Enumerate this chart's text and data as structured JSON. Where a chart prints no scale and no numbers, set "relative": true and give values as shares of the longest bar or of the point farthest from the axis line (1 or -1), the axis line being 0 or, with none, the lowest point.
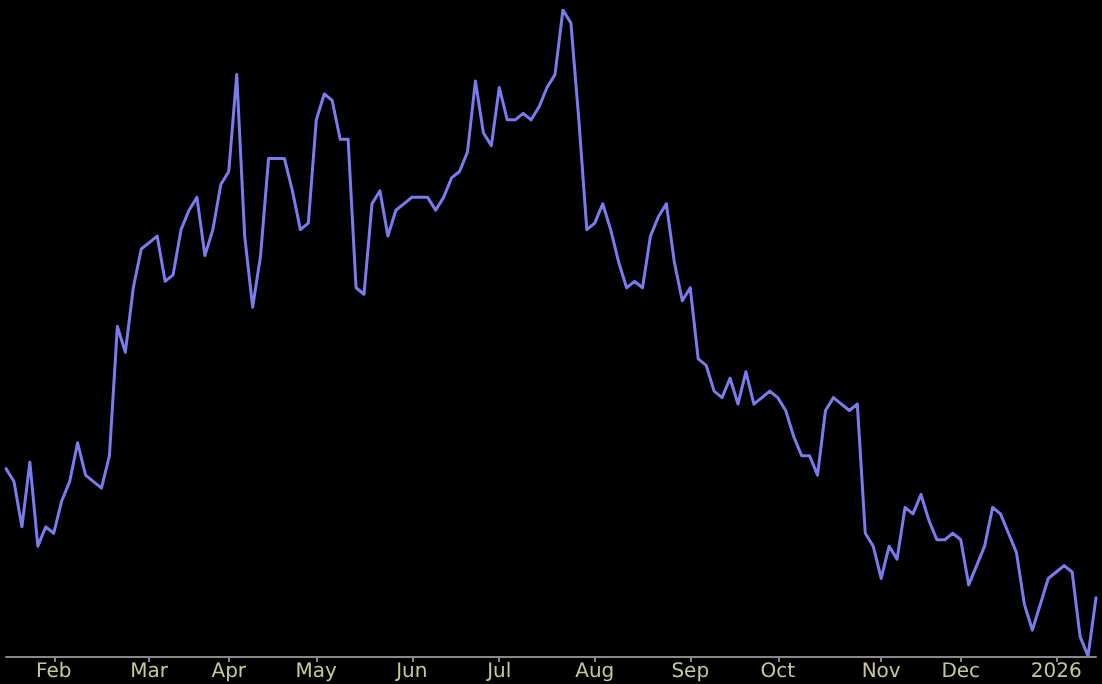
{
  "chart_data": {
    "type": "line",
    "relative": true,
    "color": "#7b7bf0",
    "grid": false,
    "marker": "none",
    "line_style": "solid",
    "categories": [
      null,
      null,
      null,
      null,
      null,
      null,
      "Feb",
      null,
      null,
      null,
      null,
      null,
      null,
      null,
      null,
      null,
      null,
      null,
      "Mar",
      null,
      null,
      null,
      null,
      null,
      null,
      null,
      null,
      null,
      "Apr",
      null,
      null,
      null,
      null,
      null,
      null,
      null,
      null,
      null,
      null,
      "May",
      null,
      null,
      null,
      null,
      null,
      null,
      null,
      null,
      null,
      null,
      null,
      "Jun",
      null,
      null,
      null,
      null,
      null,
      null,
      null,
      null,
      null,
      null,
      "Jul",
      null,
      null,
      null,
      null,
      null,
      null,
      null,
      null,
      null,
      null,
      null,
      "Aug",
      null,
      null,
      null,
      null,
      null,
      null,
      null,
      null,
      null,
      null,
      null,
      "Sep",
      null,
      null,
      null,
      null,
      null,
      null,
      null,
      null,
      null,
      null,
      "Oct",
      null,
      null,
      null,
      null,
      null,
      null,
      null,
      null,
      null,
      null,
      null,
      null,
      "Nov",
      null,
      null,
      null,
      null,
      null,
      null,
      null,
      null,
      null,
      "Dec",
      null,
      null,
      null,
      null,
      null,
      null,
      null,
      null,
      null,
      null,
      null,
      "2026",
      null,
      null,
      null,
      null,
      null
    ],
    "values": [
      0.29,
      0.27,
      0.2,
      0.3,
      0.17,
      0.2,
      0.19,
      0.24,
      0.27,
      0.33,
      0.28,
      0.27,
      0.26,
      0.31,
      0.51,
      0.47,
      0.57,
      0.63,
      0.64,
      0.65,
      0.58,
      0.59,
      0.66,
      0.69,
      0.71,
      0.62,
      0.66,
      0.73,
      0.75,
      0.9,
      0.65,
      0.54,
      0.62,
      0.77,
      0.77,
      0.77,
      0.72,
      0.66,
      0.67,
      0.83,
      0.87,
      0.86,
      0.8,
      0.8,
      0.57,
      0.56,
      0.7,
      0.72,
      0.65,
      0.69,
      0.7,
      0.71,
      0.71,
      0.71,
      0.69,
      0.71,
      0.74,
      0.75,
      0.78,
      0.89,
      0.81,
      0.79,
      0.88,
      0.83,
      0.83,
      0.84,
      0.83,
      0.85,
      0.88,
      0.9,
      1,
      0.98,
      0.83,
      0.66,
      0.67,
      0.7,
      0.66,
      0.61,
      0.57,
      0.58,
      0.57,
      0.65,
      0.68,
      0.7,
      0.61,
      0.55,
      0.57,
      0.46,
      0.45,
      0.41,
      0.4,
      0.43,
      0.39,
      0.44,
      0.39,
      0.4,
      0.41,
      0.4,
      0.38,
      0.34,
      0.31,
      0.31,
      0.28,
      0.38,
      0.4,
      0.39,
      0.38,
      0.39,
      0.19,
      0.17,
      0.12,
      0.17,
      0.15,
      0.23,
      0.22,
      0.25,
      0.21,
      0.18,
      0.18,
      0.19,
      0.18,
      0.11,
      0.14,
      0.17,
      0.23,
      0.22,
      0.19,
      0.16,
      0.08,
      0.04,
      0.08,
      0.12,
      0.13,
      0.14,
      0.13,
      0.03,
      0,
      0.09
    ]
  }
}
